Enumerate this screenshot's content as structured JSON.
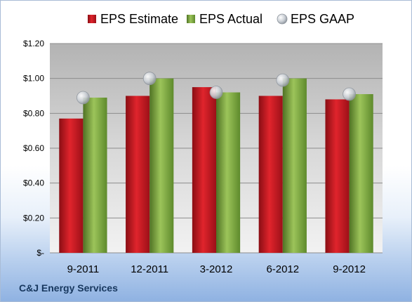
{
  "company": "C&J Energy Services",
  "chart_data": {
    "type": "bar",
    "title": "",
    "xlabel": "",
    "ylabel": "",
    "categories": [
      "9-2011",
      "12-2011",
      "3-2012",
      "6-2012",
      "9-2012"
    ],
    "series": [
      {
        "name": "EPS Estimate",
        "kind": "bar",
        "color": "#c0141c",
        "values": [
          0.77,
          0.9,
          0.95,
          0.9,
          0.88
        ]
      },
      {
        "name": "EPS Actual",
        "kind": "bar",
        "color": "#76a33a",
        "values": [
          0.89,
          1.0,
          0.92,
          1.0,
          0.91
        ]
      },
      {
        "name": "EPS GAAP",
        "kind": "marker",
        "color": "#b8bec6",
        "values": [
          0.89,
          1.0,
          0.92,
          0.99,
          0.91
        ]
      }
    ],
    "ylim": [
      0,
      1.2
    ],
    "yticks": [
      0,
      0.2,
      0.4,
      0.6,
      0.8,
      1.0,
      1.2
    ],
    "ytick_labels": [
      "$-",
      "$0.20",
      "$0.40",
      "$0.60",
      "$0.80",
      "$1.00",
      "$1.20"
    ],
    "grid": true,
    "legend_position": "top"
  }
}
